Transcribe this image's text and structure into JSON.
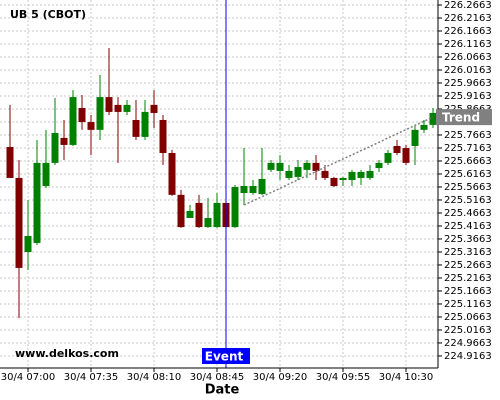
{
  "chart_data": {
    "type": "candlestick",
    "title": "UB 5 (CBOT)",
    "x_label": "Date",
    "watermark": "www.delkos.com",
    "categories": [
      null,
      null,
      "30/4 07:00",
      null,
      null,
      null,
      null,
      null,
      null,
      "30/4 07:35",
      null,
      null,
      null,
      null,
      null,
      null,
      "30/4 08:10",
      null,
      null,
      null,
      null,
      null,
      null,
      "30/4 08:45",
      null,
      null,
      null,
      null,
      null,
      null,
      "30/4 09:20",
      null,
      null,
      null,
      null,
      null,
      null,
      "30/4 09:55",
      null,
      null,
      null,
      null,
      null,
      null,
      "30/4 10:30",
      null,
      null,
      null
    ],
    "open": [
      225.72,
      225.601,
      225.316,
      225.351,
      225.57,
      225.659,
      225.755,
      225.728,
      225.87,
      225.816,
      225.786,
      225.912,
      225.882,
      225.855,
      225.824,
      225.759,
      225.882,
      225.824,
      225.697,
      225.536,
      225.447,
      225.505,
      225.412,
      225.412,
      225.505,
      225.412,
      225.543,
      225.543,
      225.539,
      225.632,
      225.628,
      225.601,
      225.605,
      225.632,
      225.659,
      225.628,
      225.601,
      225.593,
      225.593,
      225.601,
      225.601,
      225.639,
      225.659,
      225.724,
      225.716,
      225.724,
      225.786,
      225.805
    ],
    "high": [
      225.882,
      225.67,
      225.516,
      225.747,
      225.786,
      225.909,
      225.824,
      225.939,
      225.92,
      225.843,
      225.997,
      226.101,
      225.912,
      225.901,
      225.901,
      225.901,
      225.939,
      225.843,
      225.709,
      225.555,
      225.497,
      225.536,
      225.524,
      225.543,
      225.524,
      225.574,
      225.716,
      225.593,
      225.716,
      225.67,
      225.689,
      225.651,
      225.67,
      225.67,
      225.689,
      225.651,
      225.605,
      225.605,
      225.632,
      225.632,
      225.651,
      225.67,
      225.709,
      225.747,
      225.728,
      225.805,
      225.824,
      225.87
    ],
    "low": [
      225.601,
      225.062,
      225.247,
      225.343,
      225.562,
      225.651,
      225.67,
      225.724,
      225.786,
      225.689,
      225.747,
      225.843,
      225.659,
      225.843,
      225.747,
      225.747,
      225.793,
      225.651,
      225.532,
      225.409,
      225.447,
      225.409,
      225.409,
      225.409,
      225.409,
      225.409,
      225.497,
      225.536,
      225.536,
      225.624,
      225.593,
      225.593,
      225.593,
      225.601,
      225.593,
      225.593,
      225.566,
      225.57,
      225.57,
      225.574,
      225.593,
      225.624,
      225.651,
      225.689,
      225.651,
      225.651,
      225.774,
      225.793
    ],
    "close": [
      225.601,
      225.255,
      225.378,
      225.659,
      225.659,
      225.774,
      225.728,
      225.912,
      225.816,
      225.786,
      225.912,
      225.855,
      225.855,
      225.882,
      225.759,
      225.855,
      225.851,
      225.697,
      225.536,
      225.412,
      225.474,
      225.412,
      225.447,
      225.505,
      225.412,
      225.566,
      225.57,
      225.57,
      225.597,
      225.659,
      225.659,
      225.628,
      225.643,
      225.659,
      225.628,
      225.601,
      225.57,
      225.601,
      225.624,
      225.624,
      225.628,
      225.659,
      225.697,
      225.697,
      225.659,
      225.786,
      225.805,
      225.851
    ],
    "up_color": "#008000",
    "down_color": "#800000",
    "trend": {
      "label": "Trend",
      "color": "#808080",
      "values": [
        null,
        null,
        null,
        null,
        null,
        null,
        null,
        null,
        null,
        null,
        null,
        null,
        null,
        null,
        null,
        null,
        null,
        null,
        null,
        null,
        null,
        null,
        null,
        null,
        null,
        null,
        225.497,
        225.513,
        225.529,
        225.545,
        225.561,
        225.578,
        225.594,
        225.61,
        225.626,
        225.642,
        225.658,
        225.674,
        225.69,
        225.706,
        225.722,
        225.738,
        225.755,
        225.771,
        225.787,
        225.803,
        225.819,
        225.835
      ]
    },
    "event": {
      "label": "Event",
      "at": 24,
      "color": "#0000ff"
    },
    "ylim": [
      224.87,
      226.2855
    ],
    "yticks": [
      226.2663,
      226.2163,
      226.1663,
      226.1163,
      226.0663,
      226.0163,
      225.9663,
      225.9163,
      225.8663,
      225.8163,
      225.7663,
      225.7163,
      225.6663,
      225.6163,
      225.5663,
      225.5163,
      225.4663,
      225.4163,
      225.3663,
      225.3163,
      225.2663,
      225.2163,
      225.1663,
      225.1163,
      225.0663,
      225.0163,
      224.9663,
      224.9163
    ],
    "grid": true
  }
}
